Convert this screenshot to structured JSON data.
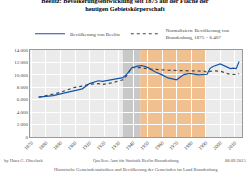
{
  "chart_data": {
    "type": "line",
    "title": "Beelitz: Bevölkerungsentwicklung seit 1875 auf der Fläche der\nheutigen Gebietskörperschaft",
    "x": [
      1875,
      1880,
      1885,
      1890,
      1895,
      1900,
      1905,
      1910,
      1916,
      1919,
      1925,
      1930,
      1933,
      1936,
      1939,
      1943,
      1946,
      1950,
      1955,
      1960,
      1964,
      1970,
      1975,
      1978,
      1980,
      1985,
      1989,
      1990,
      1991,
      1993,
      1995,
      2000,
      2001,
      2003,
      2005,
      2007,
      2009,
      2011,
      2013
    ],
    "series": [
      {
        "name": "Bevölkerung von Beelitz",
        "color": "#1155aa",
        "line_style": "solid",
        "values": [
          6407,
          6500,
          6650,
          6950,
          7200,
          7500,
          7750,
          8600,
          9050,
          8950,
          9250,
          9450,
          9550,
          10200,
          11100,
          11400,
          11500,
          11200,
          10500,
          10000,
          9500,
          9200,
          10050,
          10200,
          10200,
          10000,
          10050,
          10050,
          10100,
          11050,
          11350,
          11750,
          11650,
          11350,
          11150,
          11000,
          11080,
          11000,
          12150
        ]
      },
      {
        "name": "Normalisierte Bevölkerung von\nBrandenburg, 1875 = 6.407",
        "color": "#444444",
        "line_style": "dotted",
        "values": [
          6407,
          6600,
          6900,
          7200,
          7600,
          8000,
          8200,
          8500,
          8600,
          8450,
          8700,
          9000,
          9200,
          10000,
          11200,
          11150,
          11150,
          10950,
          10850,
          10850,
          10750,
          10700,
          10700,
          10700,
          10700,
          10600,
          10600,
          10500,
          10380,
          10550,
          10650,
          10600,
          10500,
          10300,
          10200,
          10100,
          10100,
          10050,
          10200
        ]
      }
    ],
    "xlim": [
      1869,
      2015
    ],
    "xticks": [
      1870,
      1880,
      1890,
      1900,
      1910,
      1920,
      1930,
      1940,
      1950,
      1960,
      1970,
      1980,
      1990,
      2000,
      2010
    ],
    "ylim": [
      0,
      14000
    ],
    "yticks": [
      0,
      {
        "value": 2000,
        "label": "2.000"
      },
      {
        "value": 4000,
        "label": "4.000"
      },
      {
        "value": 6000,
        "label": "6.000"
      },
      {
        "value": 8000,
        "label": "8.000"
      },
      {
        "value": 10000,
        "label": "10.000"
      },
      {
        "value": 12000,
        "label": "12.000"
      },
      {
        "value": 14000,
        "label": "14.000"
      }
    ],
    "grid": true,
    "legend": "top",
    "spans": [
      {
        "start": 1933,
        "end": 1945,
        "color": "#c8c8c8"
      },
      {
        "start": 1945,
        "end": 1990,
        "color": "#f0c090"
      }
    ],
    "annotations": [
      "Quellen: Amt für Statistik Berlin-Brandenburg",
      "Historische Gemeindestatistiken und Bevölkerung der Gemeinden im Land Brandenburg",
      "by Hans G. Oberlack",
      "08.09.2015"
    ]
  }
}
